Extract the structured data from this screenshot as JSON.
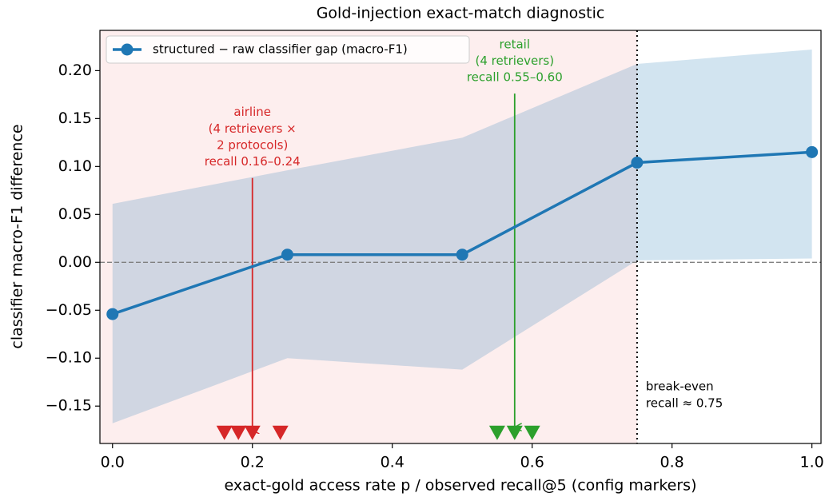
{
  "chart_data": {
    "type": "line",
    "title": "Gold-injection exact-match diagnostic",
    "xlabel": "exact-gold access rate p / observed recall@5  (config markers)",
    "ylabel": "classifier macro-F1 difference",
    "xlim": [
      -0.018,
      1.013
    ],
    "ylim": [
      -0.189,
      0.242
    ],
    "xticks": [
      {
        "value": 0.0,
        "label": "0.0"
      },
      0.2,
      0.4,
      0.6,
      0.8,
      {
        "value": 1.0,
        "label": "1.0"
      }
    ],
    "yticks": [
      {
        "value": -0.15,
        "label": "−0.15"
      },
      {
        "value": -0.1,
        "label": "−0.10"
      },
      {
        "value": -0.05,
        "label": "−0.05"
      },
      {
        "value": 0.0,
        "label": "0.00"
      },
      0.05,
      {
        "value": 0.1,
        "label": "0.10"
      },
      0.15,
      {
        "value": 0.2,
        "label": "0.20"
      }
    ],
    "legend": "upper left",
    "x": [
      0,
      0.25,
      0.5,
      0.75,
      1.0
    ],
    "series": [
      {
        "name": "structured − raw classifier gap (macro-F1)",
        "color": "#1f77b4",
        "values": [
          -0.054,
          0.008,
          0.008,
          0.104,
          0.115
        ],
        "band_upper": [
          0.061,
          0.096,
          0.13,
          0.207,
          0.222
        ],
        "band_lower": [
          -0.168,
          -0.1,
          -0.112,
          0.002,
          0.004
        ]
      }
    ],
    "reference_line": {
      "y": 0
    },
    "shaded_region": {
      "x": [
        -0.018,
        0.75
      ],
      "color": "#fdeeee"
    },
    "break_even": {
      "x": 0.75,
      "y": -0.13,
      "lines": [
        "break-even",
        "recall  ≈ 0.75"
      ]
    },
    "annotations": [
      {
        "lines": [
          "airline",
          "(4 retrievers ×",
          "2 protocols)",
          "recall 0.16–0.24"
        ],
        "color": "#d62728",
        "x": 0.2,
        "arrow_y": [
          0.088,
          -0.175
        ],
        "markers_x": [
          0.16,
          0.18,
          0.2,
          0.24
        ],
        "marker_y": -0.178
      },
      {
        "lines": [
          "retail",
          "(4 retrievers)",
          "recall 0.55–0.60"
        ],
        "color": "#2ca02c",
        "x": 0.575,
        "arrow_y": [
          0.176,
          -0.172
        ],
        "markers_x": [
          0.55,
          0.575,
          0.6
        ],
        "marker_y": -0.178
      }
    ]
  }
}
